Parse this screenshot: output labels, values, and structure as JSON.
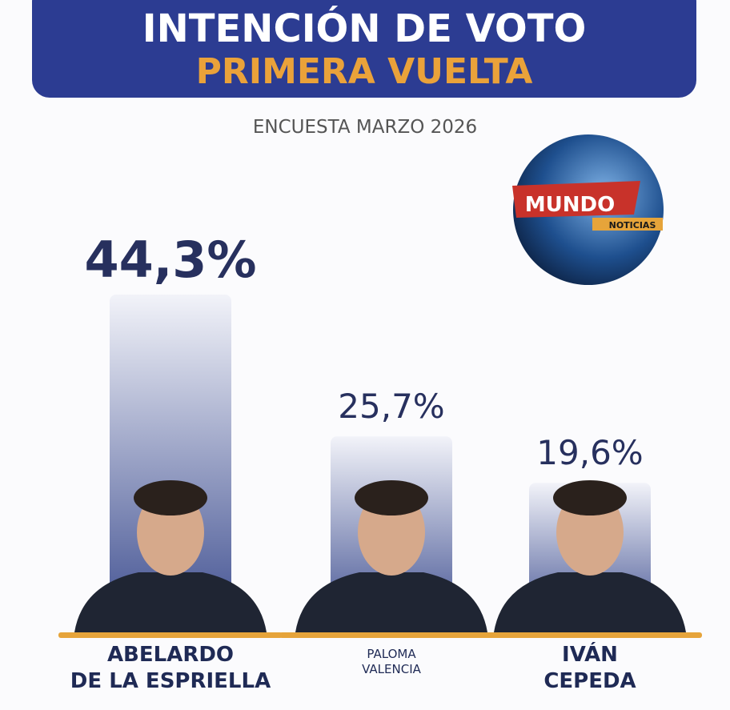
{
  "chart_data": {
    "type": "bar",
    "title": "INTENCIÓN DE VOTO",
    "subtitle": "PRIMERA VUELTA",
    "caption": "ENCUESTA MARZO 2026",
    "categories": [
      "ABELARDO\nDE LA ESPRIELLA",
      "PALOMA\nVALENCIA",
      "IVÁN\nCEPEDA"
    ],
    "values": [
      44.3,
      25.7,
      19.6
    ],
    "value_labels": [
      "44,3%",
      "25,7%",
      "19,6%"
    ],
    "color": "#3d4d8f"
  },
  "logo": {
    "title": "MUNDO",
    "subtitle": "NOTICIAS"
  }
}
